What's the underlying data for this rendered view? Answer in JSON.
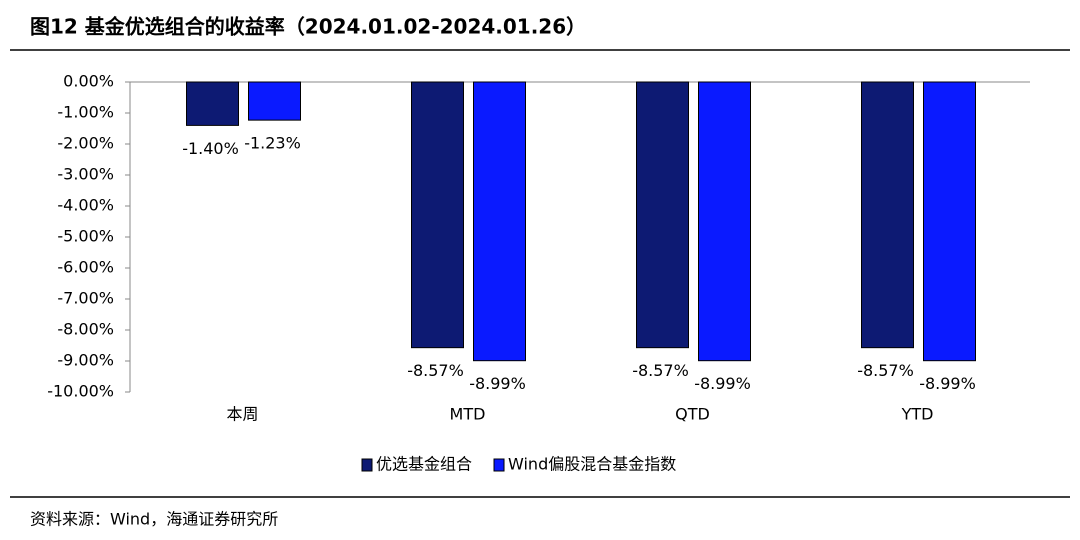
{
  "chart_data": {
    "type": "bar",
    "title": "图12 基金优选组合的收益率（2024.01.02-2024.01.26）",
    "categories": [
      "本周",
      "MTD",
      "QTD",
      "YTD"
    ],
    "series": [
      {
        "name": "优选基金组合",
        "color": "#0d1a73",
        "values": [
          -1.4,
          -8.57,
          -8.57,
          -8.57
        ],
        "value_labels": [
          "-1.40%",
          "-8.57%",
          "-8.57%",
          "-8.57%"
        ]
      },
      {
        "name": "Wind偏股混合基金指数",
        "color": "#0a1aff",
        "values": [
          -1.23,
          -8.99,
          -8.99,
          -8.99
        ],
        "value_labels": [
          "-1.23%",
          "-8.99%",
          "-8.99%",
          "-8.99%"
        ]
      }
    ],
    "ylim": [
      -10,
      0
    ],
    "yticks": [
      {
        "value": 0,
        "label": "0.00%"
      },
      {
        "value": -1,
        "label": "-1.00%"
      },
      {
        "value": -2,
        "label": "-2.00%"
      },
      {
        "value": -3,
        "label": "-3.00%"
      },
      {
        "value": -4,
        "label": "-4.00%"
      },
      {
        "value": -5,
        "label": "-5.00%"
      },
      {
        "value": -6,
        "label": "-6.00%"
      },
      {
        "value": -7,
        "label": "-7.00%"
      },
      {
        "value": -8,
        "label": "-8.00%"
      },
      {
        "value": -9,
        "label": "-9.00%"
      },
      {
        "value": -10,
        "label": "-10.00%"
      }
    ],
    "grid": false,
    "legend": "bottom",
    "source": "资料来源：Wind，海通证券研究所"
  }
}
